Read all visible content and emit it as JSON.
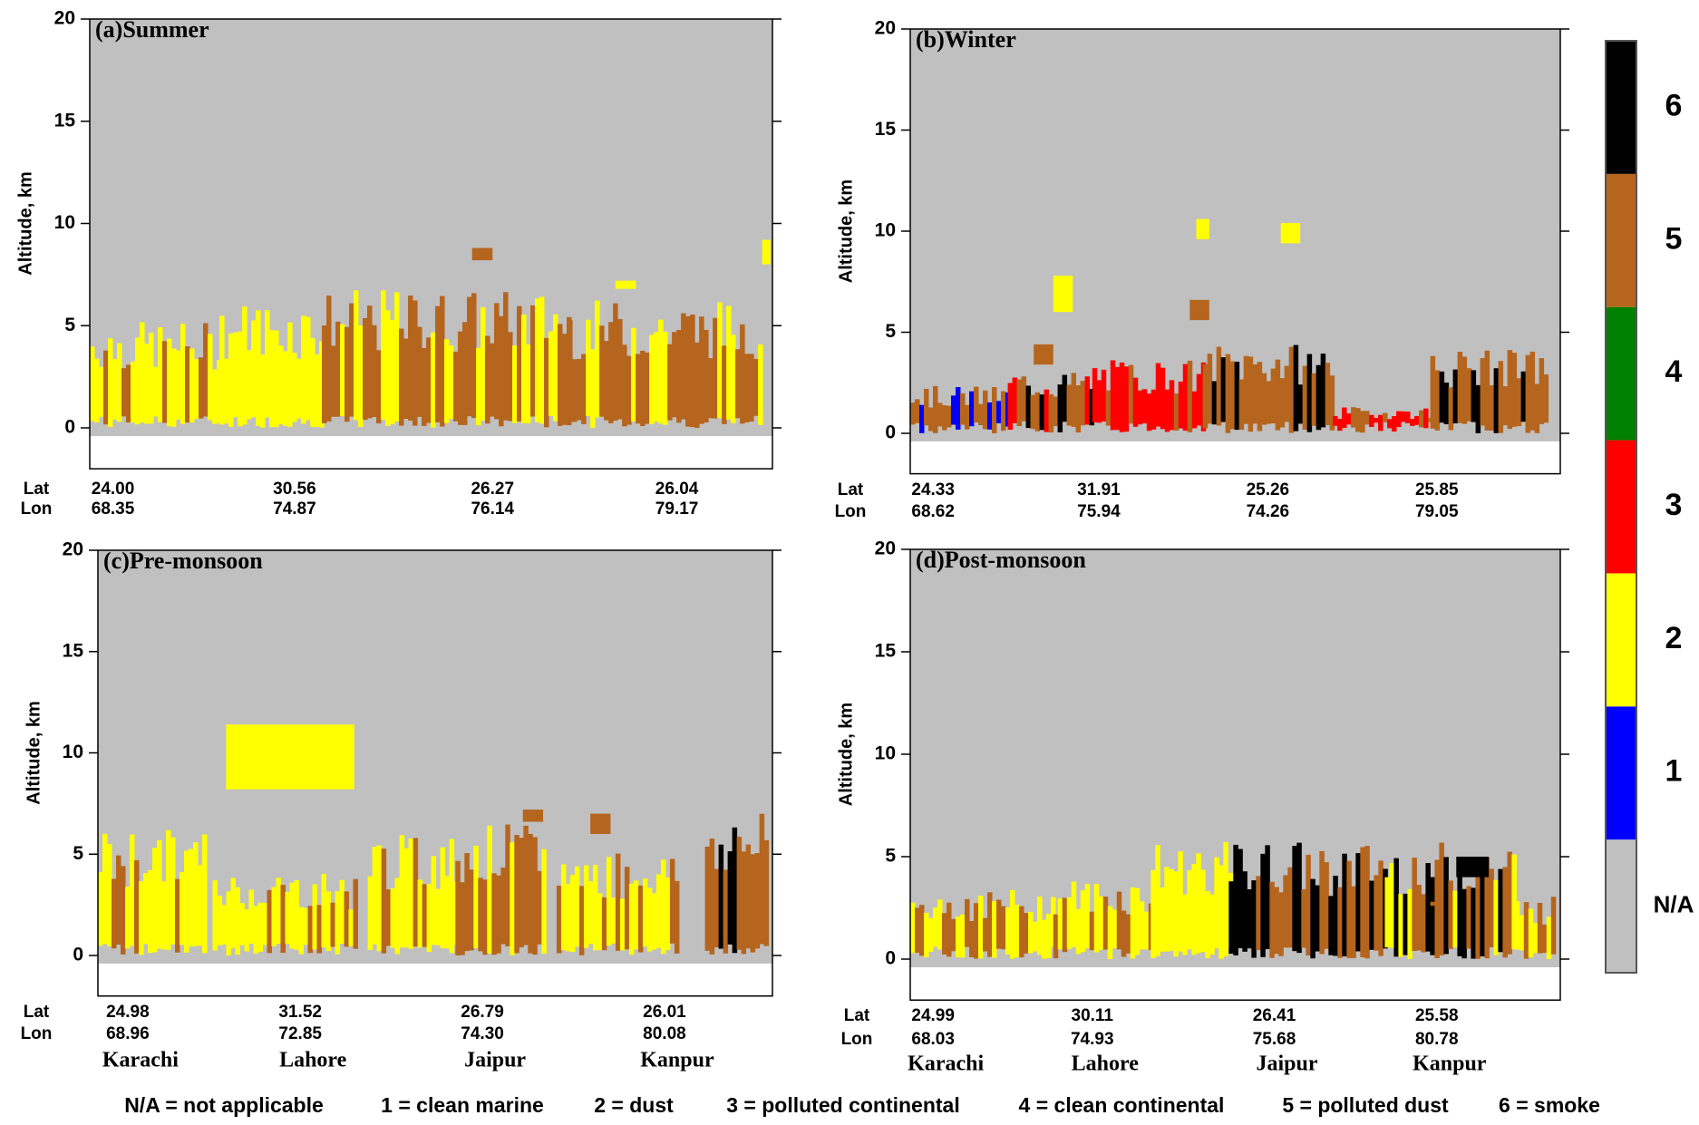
{
  "chart_data": [
    {
      "type": "curtain",
      "title": "(a)Summer",
      "y_label": "Altitude, km",
      "ylim": [
        -2,
        20
      ],
      "yticks": [
        0,
        5,
        10,
        15,
        20
      ],
      "lat_label": "Lat",
      "lon_label": "Lon",
      "lat": [
        "24.00",
        "30.56",
        "26.27",
        "26.04"
      ],
      "lon": [
        "68.35",
        "74.87",
        "76.14",
        "79.17"
      ]
    },
    {
      "type": "curtain",
      "title": "(b)Winter",
      "y_label": "Altitude, km",
      "ylim": [
        -2,
        20
      ],
      "yticks": [
        0,
        5,
        10,
        15,
        20
      ],
      "lat_label": "Lat",
      "lon_label": "Lon",
      "lat": [
        "24.33",
        "31.91",
        "25.26",
        "25.85"
      ],
      "lon": [
        "68.62",
        "75.94",
        "74.26",
        "79.05"
      ]
    },
    {
      "type": "curtain",
      "title": "(c)Pre-monsoon",
      "y_label": "Altitude, km",
      "ylim": [
        -2,
        20
      ],
      "yticks": [
        0,
        5,
        10,
        15,
        20
      ],
      "lat_label": "Lat",
      "lon_label": "Lon",
      "lat": [
        "24.98",
        "31.52",
        "26.79",
        "26.01"
      ],
      "lon": [
        "68.96",
        "72.85",
        "74.30",
        "80.08"
      ],
      "cities": [
        "Karachi",
        "Lahore",
        "Jaipur",
        "Kanpur"
      ]
    },
    {
      "type": "curtain",
      "title": "(d)Post-monsoon",
      "y_label": "Altitude, km",
      "ylim": [
        -2,
        20
      ],
      "yticks": [
        0,
        5,
        10,
        15,
        20
      ],
      "lat_label": "Lat",
      "lon_label": "Lon",
      "lat": [
        "24.99",
        "30.11",
        "26.41",
        "25.58"
      ],
      "lon": [
        "68.03",
        "74.93",
        "75.68",
        "80.78"
      ],
      "cities": [
        "Karachi",
        "Lahore",
        "Jaipur",
        "Kanpur"
      ]
    }
  ],
  "colorbar": {
    "labels": [
      "N/A",
      "1",
      "2",
      "3",
      "4",
      "5",
      "6"
    ],
    "colors": [
      "#c0c0c0",
      "#0000ff",
      "#ffff00",
      "#ff0000",
      "#008000",
      "#b5651d",
      "#000000"
    ]
  },
  "legend": [
    "N/A = not applicable",
    "1 = clean marine",
    "2 = dust",
    "3 = polluted continental",
    "4 = clean continental",
    "5 = polluted dust",
    "6 = smoke"
  ]
}
